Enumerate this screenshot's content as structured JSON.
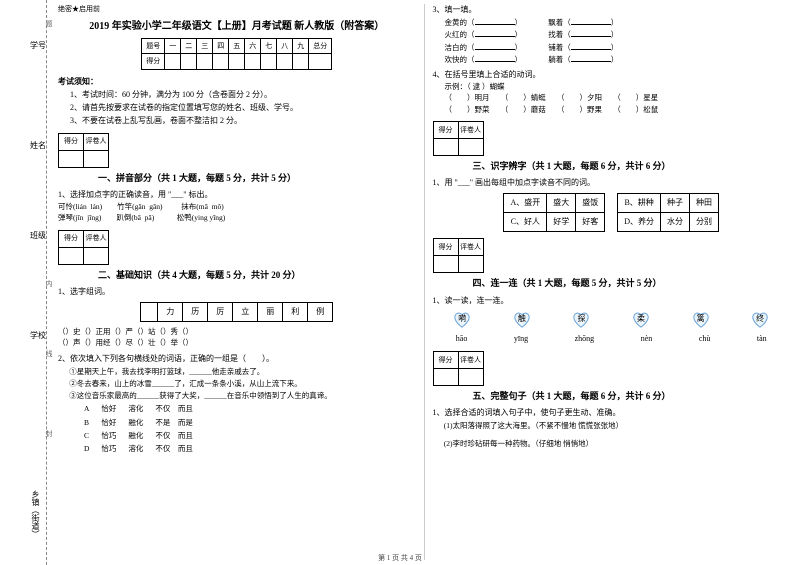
{
  "sidebar": {
    "items": [
      "学号",
      "姓名",
      "班级",
      "学校",
      "乡镇（街道）"
    ],
    "marks": [
      "题",
      "内",
      "线",
      "封",
      "密"
    ]
  },
  "header": {
    "secret": "绝密★启用前",
    "title": "2019 年实验小学二年级语文【上册】月考试题 新人教版（附答案）"
  },
  "score_table": {
    "cols": [
      "题号",
      "一",
      "二",
      "三",
      "四",
      "五",
      "六",
      "七",
      "八",
      "九",
      "总分"
    ],
    "row": "得分"
  },
  "notice": {
    "title": "考试须知：",
    "items": [
      "1、考试时间：60 分钟，满分为 100 分（含卷面分 2 分）。",
      "2、请首先按要求在试卷的指定位置填写您的姓名、班级、学号。",
      "3、不要在试卷上乱写乱画，卷面不整洁扣 2 分。"
    ]
  },
  "section_labels": {
    "score": "得分",
    "grader": "评卷人"
  },
  "s1": {
    "title": "一、拼音部分（共 1 大题，每题 5 分，共计 5 分）",
    "q": "1、选择加点字的正确读音，用 \"___\" 标出。",
    "lines": [
      "可怜(lián  lán)        竹竿(gān  gǎn)          抹布(mā  mǒ)",
      "弹琴(jīn  jīng)        趴倒(bā  pā)            松鸭(ying yīng)"
    ]
  },
  "s2": {
    "title": "二、基础知识（共 4 大题，每题 5 分，共计 20 分）",
    "q1": "1、选字组词。",
    "char_row": [
      "",
      "力",
      "历",
      "厉",
      "立",
      "丽",
      "利",
      "例"
    ],
    "rows": [
      [
        "（",
        "）史",
        "（",
        "）正",
        "用（",
        "）",
        "严（",
        "）",
        "站（",
        "）",
        "秀（",
        "）"
      ],
      [
        "（",
        "）声",
        "（",
        "）用",
        "经（",
        "）",
        "尽（",
        "）",
        "壮（",
        "）",
        "举（",
        "）"
      ]
    ],
    "q2": "2、依次填入下列各句横线处的词语，正确的一组是（　　）。",
    "q2_lines": [
      "①星期天上午，我去找李明打篮球，______他走亲戚去了。",
      "②冬去春来，山上的冰雪______了，汇成一条条小溪，从山上流下来。",
      "③这位音乐家最高的______获得了大奖，______在音乐中领悟到了人生的真谛。"
    ],
    "q2_opts": [
      [
        "A",
        "恰好",
        "溶化",
        "不仅　而且"
      ],
      [
        "B",
        "恰好",
        "融化",
        "不是　而是"
      ],
      [
        "C",
        "恰巧",
        "融化",
        "不仅　而且"
      ],
      [
        "D",
        "恰巧",
        "溶化",
        "不仅　而且"
      ]
    ],
    "q3": "3、填一填。",
    "q3_pairs": [
      [
        "金黄的（",
        "）",
        "飘着（",
        "）"
      ],
      [
        "火红的（",
        "）",
        "找着（",
        "）"
      ],
      [
        "洁白的（",
        "）",
        "铺着（",
        "）"
      ],
      [
        "欢快的（",
        "）",
        "躺着（",
        "）"
      ]
    ],
    "q4": "4、在括号里填上合适的动词。",
    "q4_ex": "示例：（ 逮 ）蝴蝶",
    "q4_items": [
      "（　　）明月",
      "（　　）蜻蜓",
      "（　　）夕阳",
      "（　　）星星",
      "（　　）野菜",
      "（　　）蘑菇",
      "（　　）野果",
      "（　　）松鼠"
    ]
  },
  "s3": {
    "title": "三、识字辨字（共 1 大题，每题 6 分，共计 6 分）",
    "q": "1、用 \"___\" 画出每组中加点字读音不同的词。",
    "rows": [
      [
        "A、盛开",
        "盛大",
        "盛饭",
        "",
        "B、耕种",
        "种子",
        "种田"
      ],
      [
        "C、好人",
        "好学",
        "好客",
        "",
        "D、养分",
        "水分",
        "分别"
      ]
    ]
  },
  "s4": {
    "title": "四、连一连（共 1 大题，每题 5 分，共计 5 分）",
    "q": "1、读一读，连一连。",
    "hearts": [
      "嗬",
      "触",
      "探",
      "柔",
      "篱",
      "终"
    ],
    "pinyin": [
      "hāo",
      "yīng",
      "zhōng",
      "nèn",
      "chù",
      "tàn"
    ]
  },
  "s5": {
    "title": "五、完整句子（共 1 大题，每题 6 分，共计 6 分）",
    "q1": "1、选择合适的词填入句子中，使句子更生动、准确。",
    "q1_line": "(1)太阳落得照了这大海里。（不紧不慢地  慌慌张张地）",
    "q2": "(2)李时珍砧研每一种药物。（仔细地  悄悄地）"
  },
  "footer": "第 1 页 共 4 页"
}
